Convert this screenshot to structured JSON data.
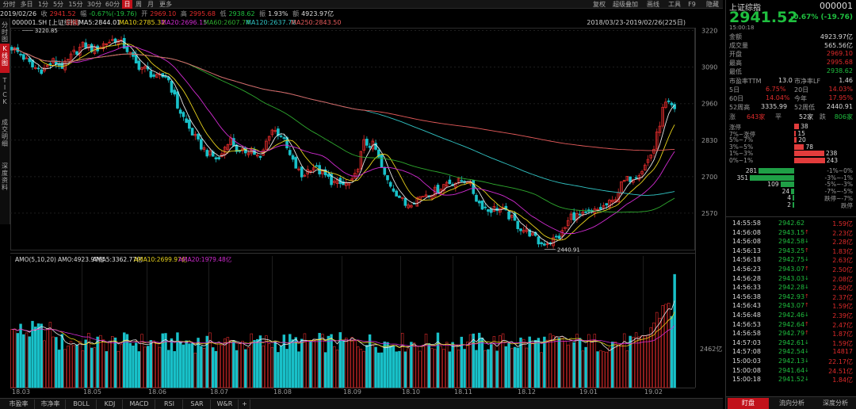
{
  "period_tabs": [
    {
      "label": "分时"
    },
    {
      "label": "多日"
    },
    {
      "label": "1分"
    },
    {
      "label": "5分"
    },
    {
      "label": "15分"
    },
    {
      "label": "30分"
    },
    {
      "label": "60分"
    },
    {
      "label": "日",
      "active": true
    },
    {
      "label": "周"
    },
    {
      "label": "月"
    },
    {
      "label": "更多"
    }
  ],
  "right_tabs": [
    {
      "label": "复权"
    },
    {
      "label": "超级叠加"
    },
    {
      "label": "画线"
    },
    {
      "label": "工具"
    },
    {
      "label": "F9"
    },
    {
      "label": "隐藏"
    }
  ],
  "info": {
    "date": "2019/02/26",
    "close_label": "收",
    "close": "2941.52",
    "change_label": "幅",
    "change": "-0.67%(-19.76)",
    "open_label": "开",
    "open": "2969.10",
    "high_label": "高",
    "high": "2995.68",
    "low_label": "低",
    "low": "2938.62",
    "amp_label": "振",
    "amp": "1.93%",
    "vol_label": "额",
    "vol": "4923.97亿"
  },
  "ma_line": {
    "code": "000001.SH [上证综指]",
    "type": "日线",
    "ma5": "MA5:2844.01",
    "ma10": "MA10:2785.32",
    "ma20": "MA20:2696.15",
    "ma60": "MA60:2607.74",
    "ma120": "MA120:2637.78",
    "ma250": "MA250:2843.50"
  },
  "range_label": "2018/03/23-2019/02/26(225日)",
  "price_ticks": [
    "3220",
    "3090",
    "2960",
    "2830",
    "2700",
    "2570"
  ],
  "vol_tick": "2462亿",
  "date_ticks": [
    "18.03",
    "18.05",
    "18.06",
    "18.07",
    "18.08",
    "18.09",
    "18.10",
    "18.11",
    "18.12",
    "19.01",
    "19.02"
  ],
  "high_mark": "3220.85",
  "low_mark": "2440.91",
  "amo_line": {
    "amo": "AMO(5,10,20)",
    "amo_val": "AMO:4923.97亿",
    "ama5": "AMA5:3362.77亿",
    "ama10": "AMA10:2699.97亿",
    "ama20": "AMA20:1979.48亿"
  },
  "left_tabs": [
    {
      "label": "分时图"
    },
    {
      "label": "K线图",
      "active": true
    },
    {
      "label": "TICK"
    },
    {
      "label": "成交明细"
    },
    {
      "label": "深度资料"
    }
  ],
  "indicator_tabs": [
    {
      "label": "市盈率"
    },
    {
      "label": "市净率"
    },
    {
      "label": "BOLL"
    },
    {
      "label": "KDJ"
    },
    {
      "label": "MACD"
    },
    {
      "label": "RSI"
    },
    {
      "label": "SAR"
    },
    {
      "label": "W&R"
    },
    {
      "label": "+"
    }
  ],
  "quote": {
    "name": "上证综指",
    "code": "000001",
    "price": "2941.52",
    "change": "-0.67% (-19.76)",
    "time": "15:00:18"
  },
  "stats": [
    {
      "label": "金额",
      "value": "4923.97亿",
      "color": "white"
    },
    {
      "label": "成交量",
      "value": "565.56亿",
      "color": "white"
    },
    {
      "label": "开盘",
      "value": "2969.10",
      "color": "red"
    },
    {
      "label": "最高",
      "value": "2995.68",
      "color": "red"
    },
    {
      "label": "最低",
      "value": "2938.62",
      "color": "green"
    }
  ],
  "pe": {
    "pe_label": "市盈率TTM",
    "pe": "13.0",
    "pb_label": "市净率LF",
    "pb": "1.46"
  },
  "returns": [
    {
      "l1": "5日",
      "v1": "6.75%",
      "l2": "20日",
      "v2": "14.03%"
    },
    {
      "l1": "60日",
      "v1": "14.04%",
      "l2": "今年",
      "v2": "17.95%"
    }
  ],
  "week52": {
    "hi_label": "52周高",
    "hi": "3335.99",
    "lo_label": "52周低",
    "lo": "2440.91"
  },
  "breadth": {
    "up_label": "涨",
    "up": "643家",
    "flat_label": "平",
    "flat": "52家",
    "down_label": "跌",
    "down": "806家"
  },
  "dist_up": [
    {
      "label": "涨停",
      "count": "38"
    },
    {
      "label": "7%~涨停",
      "count": "15"
    },
    {
      "label": "5%~7%",
      "count": "20"
    },
    {
      "label": "3%~5%",
      "count": "78"
    },
    {
      "label": "1%~3%",
      "count": "238"
    },
    {
      "label": "0%~1%",
      "count": "243"
    }
  ],
  "dist_down": [
    {
      "label": "-1%~0%",
      "count": "281"
    },
    {
      "label": "-3%~-1%",
      "count": "351"
    },
    {
      "label": "-5%~-3%",
      "count": "109"
    },
    {
      "label": "-7%~-5%",
      "count": "24"
    },
    {
      "label": "跌停~-7%",
      "count": "4"
    },
    {
      "label": "跌停",
      "count": "2"
    }
  ],
  "ticks": [
    {
      "t": "14:55:58",
      "p": "2942.62",
      "a": "",
      "c": "1.59亿"
    },
    {
      "t": "14:56:08",
      "p": "2943.15",
      "a": "↑",
      "c": "2.23亿"
    },
    {
      "t": "14:56:08",
      "p": "2942.58",
      "a": "↓",
      "c": "2.28亿"
    },
    {
      "t": "14:56:13",
      "p": "2943.25",
      "a": "↑",
      "c": "1.83亿"
    },
    {
      "t": "14:56:18",
      "p": "2942.75",
      "a": "↓",
      "c": "2.63亿"
    },
    {
      "t": "14:56:23",
      "p": "2943.07",
      "a": "↑",
      "c": "2.50亿"
    },
    {
      "t": "14:56:28",
      "p": "2943.03",
      "a": "↓",
      "c": "2.08亿"
    },
    {
      "t": "14:56:33",
      "p": "2942.28",
      "a": "↓",
      "c": "2.60亿"
    },
    {
      "t": "14:56:38",
      "p": "2942.93",
      "a": "↑",
      "c": "2.37亿"
    },
    {
      "t": "14:56:43",
      "p": "2943.07",
      "a": "↑",
      "c": "1.59亿"
    },
    {
      "t": "14:56:48",
      "p": "2942.46",
      "a": "↓",
      "c": "2.39亿"
    },
    {
      "t": "14:56:53",
      "p": "2942.64",
      "a": "↑",
      "c": "2.47亿"
    },
    {
      "t": "14:56:58",
      "p": "2942.79",
      "a": "↑",
      "c": "1.87亿"
    },
    {
      "t": "14:57:03",
      "p": "2942.61",
      "a": "↓",
      "c": "1.59亿"
    },
    {
      "t": "14:57:08",
      "p": "2942.54",
      "a": "↓",
      "c": "14817"
    },
    {
      "t": "15:00:03",
      "p": "2942.13",
      "a": "↓",
      "c": "22.17亿"
    },
    {
      "t": "15:00:08",
      "p": "2941.64",
      "a": "↓",
      "c": "24.51亿"
    },
    {
      "t": "15:00:18",
      "p": "2941.52",
      "a": "↓",
      "c": "1.84亿"
    }
  ],
  "bottom_tabs": [
    {
      "label": "盯盘",
      "active": true
    },
    {
      "label": "流向分析"
    },
    {
      "label": "深度分析"
    }
  ],
  "colors": {
    "up": "#e02b2b",
    "down": "#19c1c9",
    "ma5": "#e6e6e6",
    "ma10": "#e8d21c",
    "ma20": "#d12bd1",
    "ma60": "#2ea82e",
    "ma120": "#31c4c4",
    "ma250": "#e65b5b",
    "accent": "#c1121b"
  },
  "chart_data": {
    "type": "candlestick",
    "title": "000001.SH [上证综指] 日线",
    "x_range": [
      "2018/03/23",
      "2019/02/26"
    ],
    "bars": 225,
    "ylim": [
      2440,
      3230
    ],
    "month_labels": [
      "18.03",
      "18.05",
      "18.06",
      "18.07",
      "18.08",
      "18.09",
      "18.10",
      "18.11",
      "18.12",
      "19.01",
      "19.02"
    ],
    "close_path": [
      3160,
      3130,
      3090,
      3080,
      3110,
      3090,
      3140,
      3170,
      3150,
      3175,
      3190,
      3160,
      3100,
      3080,
      3050,
      3060,
      2950,
      2880,
      2820,
      2780,
      2760,
      2840,
      2780,
      2800,
      2760,
      2870,
      2850,
      2760,
      2700,
      2740,
      2710,
      2680,
      2670,
      2680,
      2820,
      2810,
      2700,
      2650,
      2600,
      2620,
      2640,
      2650,
      2680,
      2680,
      2690,
      2610,
      2580,
      2590,
      2560,
      2520,
      2500,
      2460,
      2470,
      2490,
      2560,
      2560,
      2570,
      2590,
      2610,
      2680,
      2700,
      2730,
      2800,
      2960,
      2941.52
    ],
    "high_mark": 3220.85,
    "low_mark": 2440.91,
    "volume_unit": "亿",
    "volume_tick": 2462,
    "last_volume": 4923.97
  }
}
